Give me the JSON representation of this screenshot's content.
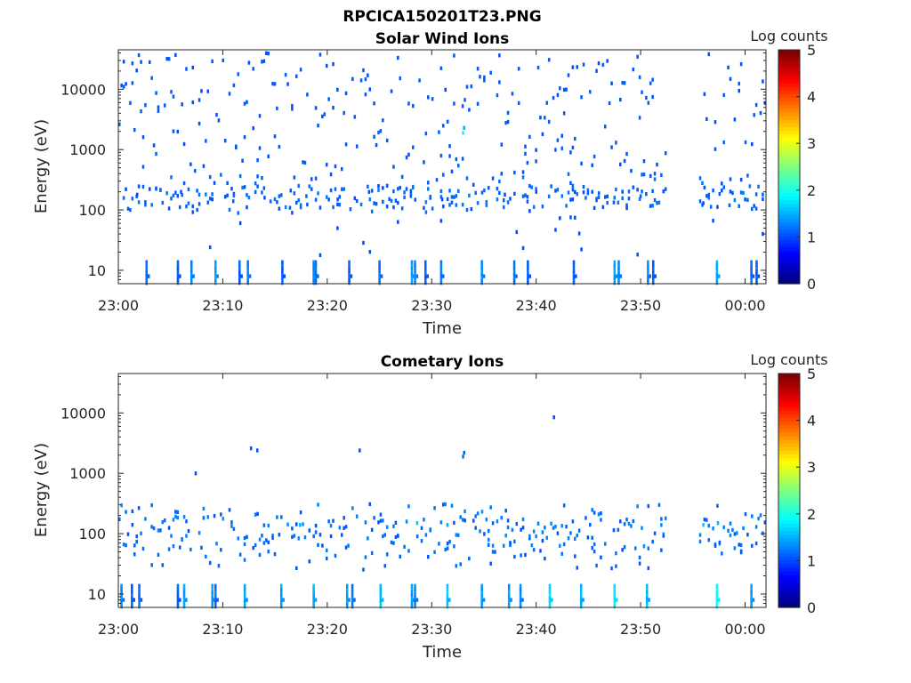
{
  "figure_title": "RPCICA150201T23.PNG",
  "chart_data": [
    {
      "type": "heatmap",
      "title": "Solar Wind Ions",
      "xlabel": "Time",
      "ylabel": "Energy (eV)",
      "x_ticks": [
        "23:00",
        "23:10",
        "23:20",
        "23:30",
        "23:40",
        "23:50",
        "00:00"
      ],
      "x_range_minutes": [
        0,
        62
      ],
      "y_ticks": [
        "10",
        "100",
        "1000",
        "10000"
      ],
      "y_tick_values": [
        10,
        100,
        1000,
        10000
      ],
      "y_scale": "log",
      "ylim": [
        6,
        45000
      ],
      "colorbar": {
        "label": "Log counts",
        "ticks": [
          "0",
          "1",
          "2",
          "3",
          "4",
          "5"
        ],
        "range": [
          0,
          5
        ],
        "colormap": "jet"
      },
      "data_gap_minutes": [
        52.5,
        55.5
      ],
      "points": [
        [
          2.7,
          8,
          1.2
        ],
        [
          2.7,
          9,
          1.1
        ],
        [
          5.7,
          12,
          1.0
        ],
        [
          7.0,
          8,
          1.2
        ],
        [
          9.3,
          9,
          1.3
        ],
        [
          11.6,
          8,
          1.0
        ],
        [
          12.4,
          9,
          1.2
        ],
        [
          15.7,
          11,
          1.0
        ],
        [
          18.7,
          8,
          1.2
        ],
        [
          18.9,
          9,
          1.1
        ],
        [
          22.1,
          9,
          1.0
        ],
        [
          25.0,
          8,
          1.1
        ],
        [
          28.1,
          8,
          1.3
        ],
        [
          28.4,
          9,
          1.2
        ],
        [
          29.4,
          10,
          1.0
        ],
        [
          30.9,
          8,
          1.1
        ],
        [
          34.8,
          8,
          1.2
        ],
        [
          37.9,
          8,
          1.1
        ],
        [
          39.2,
          9,
          1.0
        ],
        [
          43.6,
          8,
          1.0
        ],
        [
          47.5,
          8,
          1.3
        ],
        [
          47.9,
          9,
          1.2
        ],
        [
          50.7,
          8,
          1.2
        ],
        [
          51.2,
          14,
          1.0
        ],
        [
          57.3,
          9,
          1.4
        ],
        [
          60.6,
          8,
          1.1
        ],
        [
          61.1,
          9,
          1.0
        ],
        [
          33.0,
          1900,
          1.9
        ],
        [
          33.1,
          2300,
          1.5
        ],
        [
          1.8,
          180,
          1.0
        ],
        [
          6.0,
          200,
          1.0
        ],
        [
          9.0,
          150,
          1.0
        ],
        [
          11.0,
          140,
          1.1
        ],
        [
          14.0,
          160,
          1.0
        ],
        [
          16.5,
          210,
          1.0
        ],
        [
          18.0,
          170,
          1.1
        ],
        [
          21.0,
          150,
          1.0
        ],
        [
          24.0,
          200,
          1.0
        ],
        [
          28.0,
          170,
          1.1
        ],
        [
          31.0,
          150,
          1.0
        ],
        [
          37.0,
          180,
          1.0
        ],
        [
          40.0,
          200,
          1.0
        ],
        [
          43.5,
          150,
          1.0
        ],
        [
          46.0,
          190,
          1.1
        ],
        [
          47.5,
          160,
          1.2
        ],
        [
          50.0,
          170,
          1.1
        ],
        [
          56.0,
          130,
          1.0
        ],
        [
          58.5,
          120,
          1.1
        ],
        [
          60.0,
          150,
          1.0
        ]
      ]
    },
    {
      "type": "heatmap",
      "title": "Cometary Ions",
      "xlabel": "Time",
      "ylabel": "Energy (eV)",
      "x_ticks": [
        "23:00",
        "23:10",
        "23:20",
        "23:30",
        "23:40",
        "23:50",
        "00:00"
      ],
      "x_range_minutes": [
        0,
        62
      ],
      "y_ticks": [
        "10",
        "100",
        "1000",
        "10000"
      ],
      "y_tick_values": [
        10,
        100,
        1000,
        10000
      ],
      "y_scale": "log",
      "ylim": [
        6,
        45000
      ],
      "colorbar": {
        "label": "Log counts",
        "ticks": [
          "0",
          "1",
          "2",
          "3",
          "4",
          "5"
        ],
        "range": [
          0,
          5
        ],
        "colormap": "jet"
      },
      "data_gap_minutes": [
        52.5,
        55.5
      ],
      "points": [
        [
          12.7,
          2600,
          1.0
        ],
        [
          13.3,
          2400,
          1.0
        ],
        [
          23.1,
          2400,
          1.0
        ],
        [
          33.0,
          1900,
          1.2
        ],
        [
          33.1,
          2200,
          1.1
        ],
        [
          41.7,
          8500,
          1.0
        ],
        [
          7.4,
          1000,
          1.0
        ],
        [
          0.3,
          10,
          1.2
        ],
        [
          1.3,
          10,
          1.0
        ],
        [
          2.0,
          10,
          1.1
        ],
        [
          5.7,
          10,
          1.0
        ],
        [
          6.3,
          10,
          1.3
        ],
        [
          9.0,
          10,
          1.3
        ],
        [
          9.3,
          10,
          1.1
        ],
        [
          12.1,
          10,
          1.3
        ],
        [
          15.6,
          10,
          1.3
        ],
        [
          18.7,
          10,
          1.4
        ],
        [
          21.9,
          10,
          1.3
        ],
        [
          22.4,
          10,
          1.1
        ],
        [
          25.1,
          10,
          1.5
        ],
        [
          28.1,
          10,
          1.3
        ],
        [
          28.4,
          10,
          1.2
        ],
        [
          31.5,
          10,
          1.5
        ],
        [
          34.8,
          10,
          1.3
        ],
        [
          37.4,
          10,
          1.3
        ],
        [
          38.5,
          10,
          1.2
        ],
        [
          41.3,
          10,
          1.6
        ],
        [
          44.3,
          10,
          1.4
        ],
        [
          47.5,
          10,
          1.7
        ],
        [
          50.6,
          10,
          1.4
        ],
        [
          57.3,
          10,
          1.8
        ],
        [
          60.6,
          10,
          1.3
        ],
        [
          17.4,
          140,
          1.5
        ],
        [
          28.6,
          150,
          1.6
        ],
        [
          31.5,
          140,
          1.5
        ],
        [
          56.0,
          140,
          1.6
        ],
        [
          57.4,
          150,
          1.5
        ]
      ]
    }
  ]
}
